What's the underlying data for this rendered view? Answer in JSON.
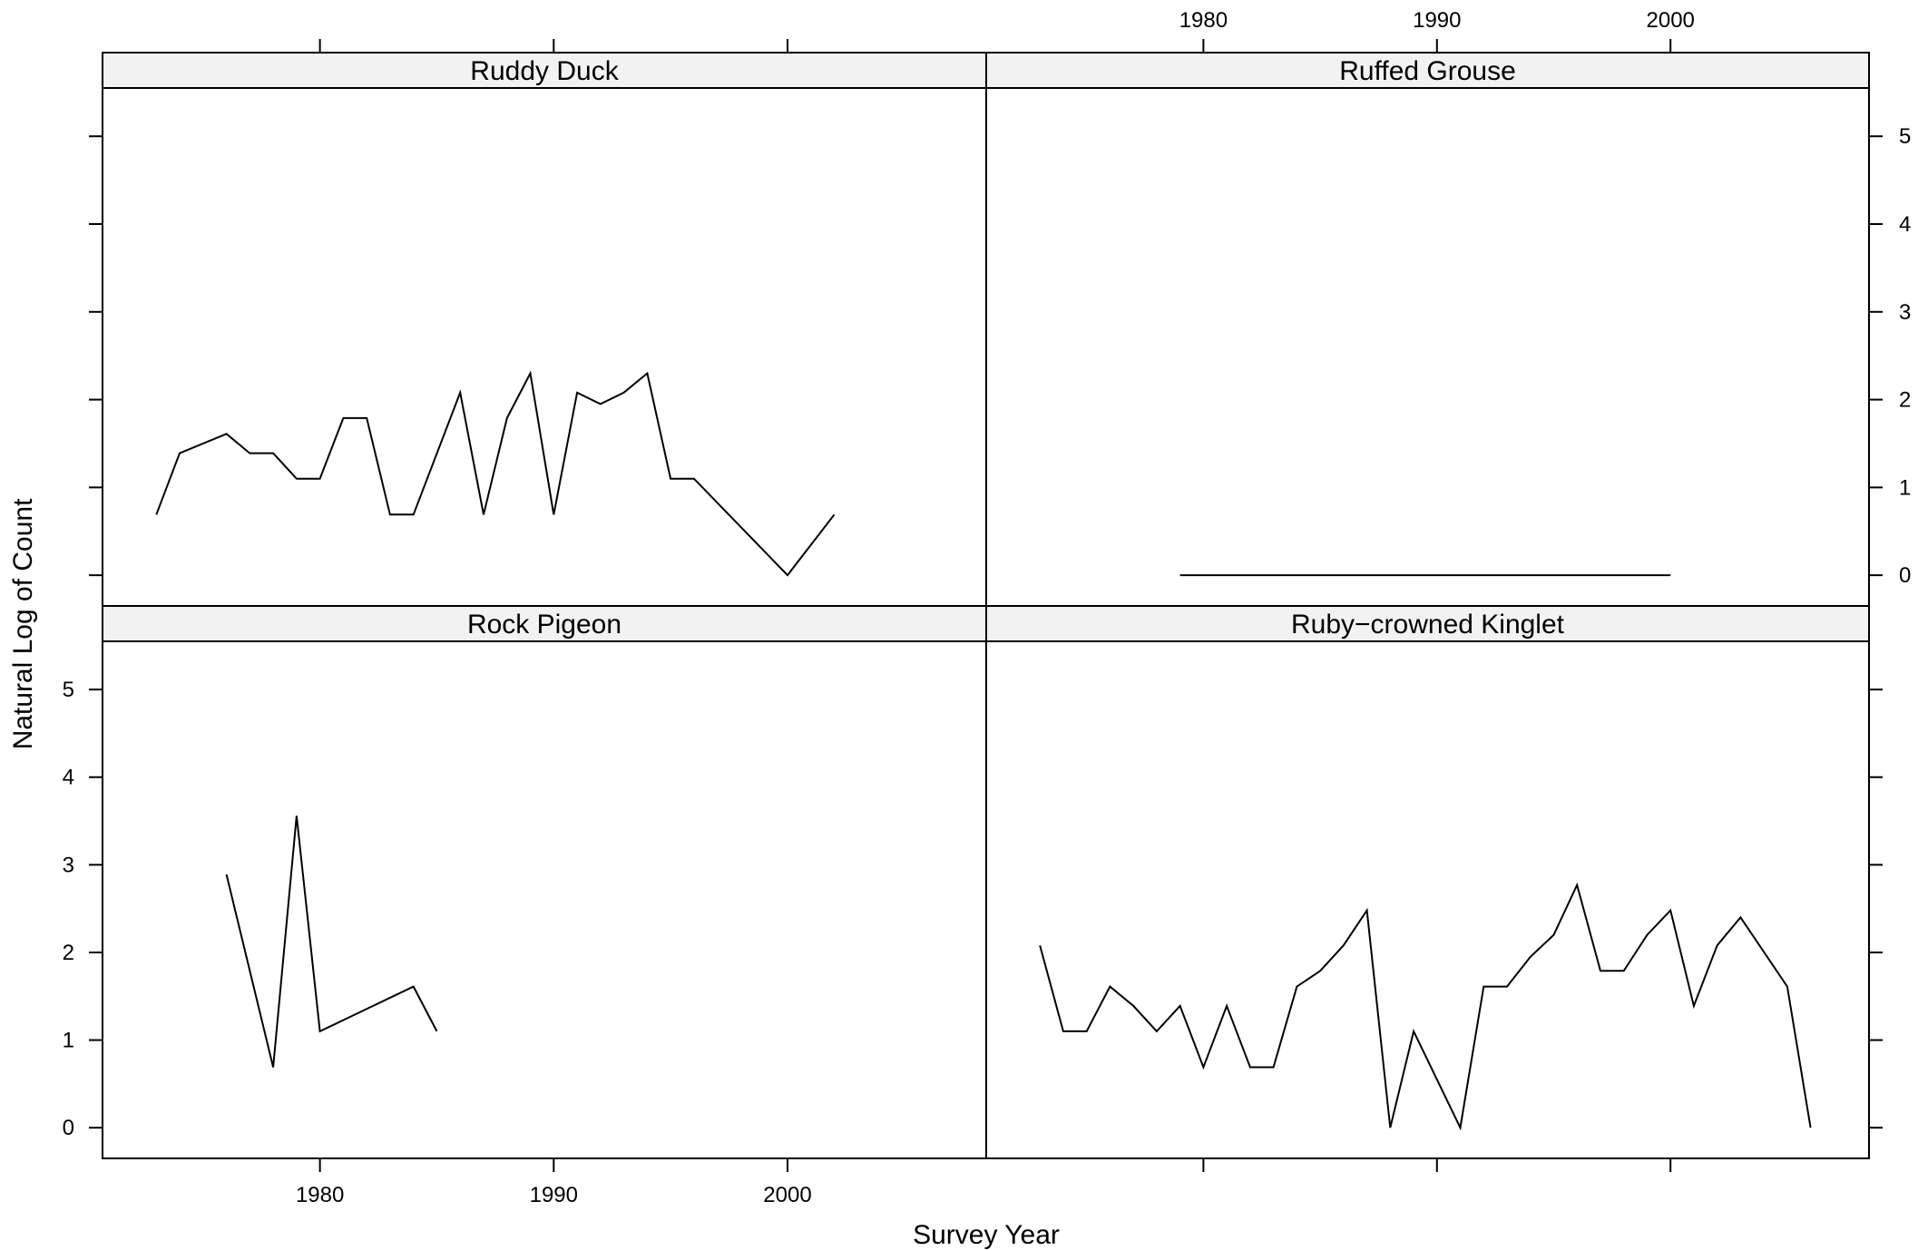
{
  "chart_data": {
    "type": "line",
    "layout": "trellis 2x2",
    "xlabel": "Survey Year",
    "ylabel": "Natural Log of Count",
    "xlim": [
      1970.7,
      2008.5
    ],
    "ylim": [
      -0.35,
      5.55
    ],
    "x_ticks": [
      1980,
      1990,
      2000
    ],
    "y_ticks": [
      0,
      1,
      2,
      3,
      4,
      5
    ],
    "grid": false,
    "panels": [
      {
        "name": "Ruddy Duck",
        "x": [
          1973,
          1974,
          1976,
          1977,
          1978,
          1979,
          1980,
          1981,
          1982,
          1983,
          1984,
          1986,
          1987,
          1988,
          1989,
          1990,
          1991,
          1992,
          1993,
          1994,
          1995,
          1996,
          2000,
          2002
        ],
        "values": [
          0.69,
          1.39,
          1.61,
          1.39,
          1.39,
          1.1,
          1.1,
          1.79,
          1.79,
          0.69,
          0.69,
          2.08,
          0.69,
          1.79,
          2.3,
          0.69,
          2.08,
          1.95,
          2.08,
          2.3,
          1.1,
          1.1,
          0.0,
          0.69
        ]
      },
      {
        "name": "Ruffed Grouse",
        "x": [
          1979,
          2000
        ],
        "values": [
          0.0,
          0.0
        ]
      },
      {
        "name": "Rock Pigeon",
        "x": [
          1976,
          1978,
          1979,
          1980,
          1984,
          1985
        ],
        "values": [
          2.89,
          0.69,
          3.56,
          1.1,
          1.61,
          1.1
        ]
      },
      {
        "name": "Ruby−crowned Kinglet",
        "x": [
          1973,
          1974,
          1975,
          1976,
          1977,
          1978,
          1979,
          1980,
          1981,
          1982,
          1983,
          1984,
          1985,
          1986,
          1987,
          1988,
          1989,
          1991,
          1992,
          1993,
          1994,
          1995,
          1996,
          1997,
          1998,
          1999,
          2000,
          2001,
          2002,
          2003,
          2005,
          2006
        ],
        "values": [
          2.08,
          1.1,
          1.1,
          1.61,
          1.39,
          1.1,
          1.39,
          0.69,
          1.39,
          0.69,
          0.69,
          1.61,
          1.79,
          2.08,
          2.48,
          0.0,
          1.1,
          0.0,
          1.61,
          1.61,
          1.95,
          2.2,
          2.77,
          1.79,
          1.79,
          2.2,
          2.48,
          1.39,
          2.08,
          2.4,
          1.61,
          0.0
        ]
      }
    ]
  }
}
